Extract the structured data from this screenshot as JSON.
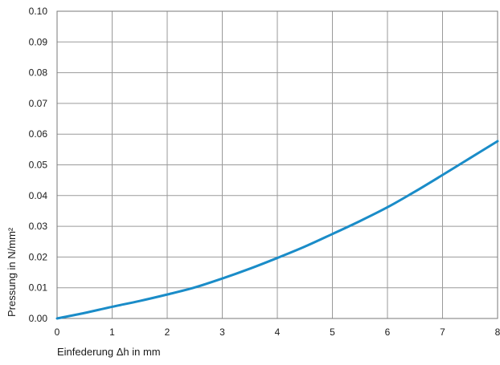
{
  "chart_data": {
    "type": "line",
    "title": "",
    "xlabel": "Einfederung Δh in mm",
    "ylabel": "Pressung in N/mm²",
    "xlim": [
      0,
      8
    ],
    "ylim": [
      0,
      0.1
    ],
    "x_ticks": [
      "0",
      "1",
      "2",
      "3",
      "4",
      "5",
      "6",
      "7",
      "8"
    ],
    "y_ticks": [
      "0.00",
      "0.01",
      "0.02",
      "0.03",
      "0.04",
      "0.05",
      "0.06",
      "0.07",
      "0.08",
      "0.09",
      "0.10"
    ],
    "grid": true,
    "series": [
      {
        "color": "#1a8cc8",
        "x": [
          0,
          0.5,
          1,
          1.5,
          2,
          2.5,
          3,
          3.5,
          4,
          4.5,
          5,
          5.5,
          6,
          6.5,
          7,
          7.5,
          8
        ],
        "y": [
          0.0,
          0.0018,
          0.0038,
          0.0057,
          0.0078,
          0.0101,
          0.013,
          0.0162,
          0.0197,
          0.0234,
          0.0275,
          0.0317,
          0.0362,
          0.0413,
          0.0467,
          0.0522,
          0.0577
        ]
      }
    ]
  }
}
